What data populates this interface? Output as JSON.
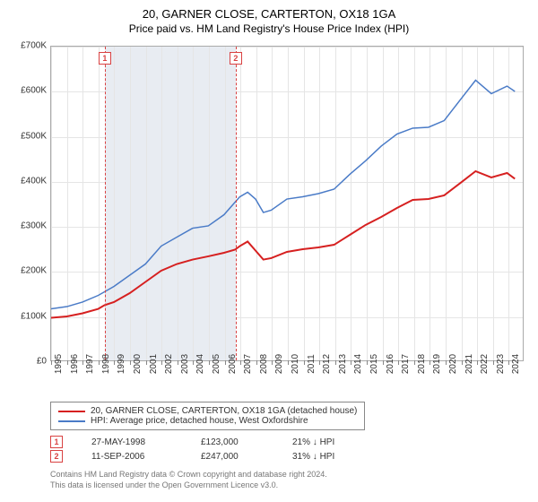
{
  "title": "20, GARNER CLOSE, CARTERTON, OX18 1GA",
  "subtitle": "Price paid vs. HM Land Registry's House Price Index (HPI)",
  "chart": {
    "type": "line",
    "background_color": "#ffffff",
    "grid_color": "#e5e5e5",
    "axis_color": "#aaaaaa",
    "label_fontsize": 10,
    "ylim": [
      0,
      700000
    ],
    "ytick_step": 100000,
    "y_ticks": [
      "£0",
      "£100K",
      "£200K",
      "£300K",
      "£400K",
      "£500K",
      "£600K",
      "£700K"
    ],
    "xlim": [
      1995,
      2025
    ],
    "x_ticks": [
      "1995",
      "1996",
      "1997",
      "1998",
      "1999",
      "2000",
      "2001",
      "2002",
      "2003",
      "2004",
      "2005",
      "2006",
      "2007",
      "2008",
      "2009",
      "2010",
      "2011",
      "2012",
      "2013",
      "2014",
      "2015",
      "2016",
      "2017",
      "2018",
      "2019",
      "2020",
      "2021",
      "2022",
      "2023",
      "2024"
    ],
    "shade_band": {
      "from": 1998.4,
      "to": 2006.7,
      "color": "#e8ecf2"
    },
    "ref_lines": [
      {
        "x": 1998.4,
        "label": "1",
        "color": "#d94242"
      },
      {
        "x": 2006.7,
        "label": "2",
        "color": "#d94242"
      }
    ],
    "series": [
      {
        "name": "property",
        "label": "20, GARNER CLOSE, CARTERTON, OX18 1GA (detached house)",
        "color": "#d62020",
        "line_width": 2,
        "data": [
          [
            1995,
            95000
          ],
          [
            1996,
            98000
          ],
          [
            1997,
            105000
          ],
          [
            1998,
            115000
          ],
          [
            1998.4,
            123000
          ],
          [
            1999,
            130000
          ],
          [
            2000,
            150000
          ],
          [
            2001,
            175000
          ],
          [
            2002,
            200000
          ],
          [
            2003,
            215000
          ],
          [
            2004,
            225000
          ],
          [
            2005,
            232000
          ],
          [
            2006,
            240000
          ],
          [
            2006.7,
            247000
          ],
          [
            2007,
            255000
          ],
          [
            2007.5,
            265000
          ],
          [
            2008,
            245000
          ],
          [
            2008.5,
            225000
          ],
          [
            2009,
            228000
          ],
          [
            2010,
            242000
          ],
          [
            2011,
            248000
          ],
          [
            2012,
            252000
          ],
          [
            2013,
            258000
          ],
          [
            2014,
            280000
          ],
          [
            2015,
            302000
          ],
          [
            2016,
            320000
          ],
          [
            2017,
            340000
          ],
          [
            2018,
            358000
          ],
          [
            2019,
            360000
          ],
          [
            2020,
            368000
          ],
          [
            2021,
            395000
          ],
          [
            2022,
            422000
          ],
          [
            2023,
            408000
          ],
          [
            2024,
            418000
          ],
          [
            2024.5,
            405000
          ]
        ]
      },
      {
        "name": "hpi",
        "label": "HPI: Average price, detached house, West Oxfordshire",
        "color": "#4a7bc7",
        "line_width": 1.5,
        "data": [
          [
            1995,
            115000
          ],
          [
            1996,
            120000
          ],
          [
            1997,
            130000
          ],
          [
            1998,
            145000
          ],
          [
            1999,
            165000
          ],
          [
            2000,
            190000
          ],
          [
            2001,
            215000
          ],
          [
            2002,
            255000
          ],
          [
            2003,
            275000
          ],
          [
            2004,
            295000
          ],
          [
            2005,
            300000
          ],
          [
            2006,
            325000
          ],
          [
            2007,
            365000
          ],
          [
            2007.5,
            375000
          ],
          [
            2008,
            360000
          ],
          [
            2008.5,
            330000
          ],
          [
            2009,
            335000
          ],
          [
            2010,
            360000
          ],
          [
            2011,
            365000
          ],
          [
            2012,
            372000
          ],
          [
            2013,
            382000
          ],
          [
            2014,
            415000
          ],
          [
            2015,
            445000
          ],
          [
            2016,
            478000
          ],
          [
            2017,
            505000
          ],
          [
            2018,
            518000
          ],
          [
            2019,
            520000
          ],
          [
            2020,
            535000
          ],
          [
            2021,
            580000
          ],
          [
            2022,
            625000
          ],
          [
            2023,
            595000
          ],
          [
            2024,
            612000
          ],
          [
            2024.5,
            600000
          ]
        ]
      }
    ]
  },
  "legend_items": [
    {
      "color": "#d62020",
      "label": "20, GARNER CLOSE, CARTERTON, OX18 1GA (detached house)"
    },
    {
      "color": "#4a7bc7",
      "label": "HPI: Average price, detached house, West Oxfordshire"
    }
  ],
  "records": [
    {
      "marker": "1",
      "date": "27-MAY-1998",
      "price": "£123,000",
      "diff": "21% ↓ HPI"
    },
    {
      "marker": "2",
      "date": "11-SEP-2006",
      "price": "£247,000",
      "diff": "31% ↓ HPI"
    }
  ],
  "footer_line1": "Contains HM Land Registry data © Crown copyright and database right 2024.",
  "footer_line2": "This data is licensed under the Open Government Licence v3.0."
}
